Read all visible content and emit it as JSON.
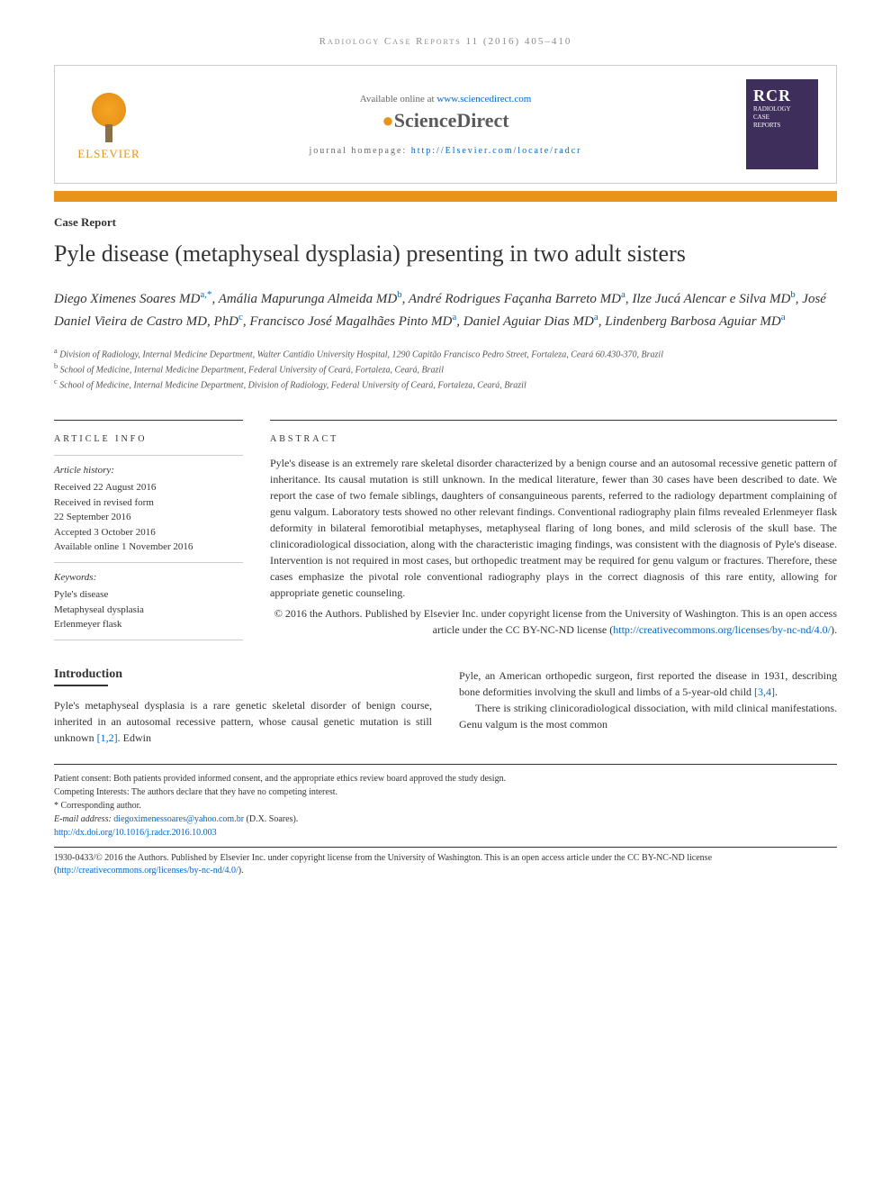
{
  "header": {
    "citation": "Radiology Case Reports 11 (2016) 405–410",
    "available_text": "Available online at ",
    "available_link": "www.sciencedirect.com",
    "sciencedirect": "ScienceDirect",
    "homepage_label": "journal homepage: ",
    "homepage_url": "http://Elsevier.com/locate/radcr",
    "elsevier": "ELSEVIER",
    "journal_abbr": "RCR",
    "journal_name_1": "RADIOLOGY",
    "journal_name_2": "CASE",
    "journal_name_3": "REPORTS"
  },
  "article": {
    "type": "Case Report",
    "title": "Pyle disease (metaphyseal dysplasia) presenting in two adult sisters"
  },
  "authors": [
    {
      "name": "Diego Ximenes Soares MD",
      "aff": "a,*"
    },
    {
      "name": "Amália Mapurunga Almeida MD",
      "aff": "b"
    },
    {
      "name": "André Rodrigues Façanha Barreto MD",
      "aff": "a"
    },
    {
      "name": "Ilze Jucá Alencar e Silva MD",
      "aff": "b"
    },
    {
      "name": "José Daniel Vieira de Castro MD, PhD",
      "aff": "c"
    },
    {
      "name": "Francisco José Magalhães Pinto MD",
      "aff": "a"
    },
    {
      "name": "Daniel Aguiar Dias MD",
      "aff": "a"
    },
    {
      "name": "Lindenberg Barbosa Aguiar MD",
      "aff": "a"
    }
  ],
  "affiliations": [
    {
      "sup": "a",
      "text": "Division of Radiology, Internal Medicine Department, Walter Cantídio University Hospital, 1290 Capitão Francisco Pedro Street, Fortaleza, Ceará 60.430-370, Brazil"
    },
    {
      "sup": "b",
      "text": "School of Medicine, Internal Medicine Department, Federal University of Ceará, Fortaleza, Ceará, Brazil"
    },
    {
      "sup": "c",
      "text": "School of Medicine, Internal Medicine Department, Division of Radiology, Federal University of Ceará, Fortaleza, Ceará, Brazil"
    }
  ],
  "article_info": {
    "header": "ARTICLE INFO",
    "history_label": "Article history:",
    "history": [
      "Received 22 August 2016",
      "Received in revised form",
      "22 September 2016",
      "Accepted 3 October 2016",
      "Available online 1 November 2016"
    ],
    "keywords_label": "Keywords:",
    "keywords": [
      "Pyle's disease",
      "Metaphyseal dysplasia",
      "Erlenmeyer flask"
    ]
  },
  "abstract": {
    "header": "ABSTRACT",
    "text": "Pyle's disease is an extremely rare skeletal disorder characterized by a benign course and an autosomal recessive genetic pattern of inheritance. Its causal mutation is still unknown. In the medical literature, fewer than 30 cases have been described to date. We report the case of two female siblings, daughters of consanguineous parents, referred to the radiology department complaining of genu valgum. Laboratory tests showed no other relevant findings. Conventional radiography plain films revealed Erlenmeyer flask deformity in bilateral femorotibial metaphyses, metaphyseal flaring of long bones, and mild sclerosis of the skull base. The clinicoradiological dissociation, along with the characteristic imaging findings, was consistent with the diagnosis of Pyle's disease. Intervention is not required in most cases, but orthopedic treatment may be required for genu valgum or fractures. Therefore, these cases emphasize the pivotal role conventional radiography plays in the correct diagnosis of this rare entity, allowing for appropriate genetic counseling.",
    "copyright": "© 2016 the Authors. Published by Elsevier Inc. under copyright license from the University of Washington. This is an open access article under the CC BY-NC-ND license (",
    "license_url": "http://creativecommons.org/licenses/by-nc-nd/4.0/",
    "copyright_end": ")."
  },
  "body": {
    "intro_heading": "Introduction",
    "intro_col1": "Pyle's metaphyseal dysplasia is a rare genetic skeletal disorder of benign course, inherited in an autosomal recessive pattern, whose causal genetic mutation is still unknown ",
    "intro_ref1": "[1,2]",
    "intro_col1_end": ". Edwin",
    "intro_col2_p1": "Pyle, an American orthopedic surgeon, first reported the disease in 1931, describing bone deformities involving the skull and limbs of a 5-year-old child ",
    "intro_ref2": "[3,4]",
    "intro_col2_p1_end": ".",
    "intro_col2_p2": "There is striking clinicoradiological dissociation, with mild clinical manifestations. Genu valgum is the most common"
  },
  "footer": {
    "consent": "Patient consent: Both patients provided informed consent, and the appropriate ethics review board approved the study design.",
    "competing": "Competing Interests: The authors declare that they have no competing interest.",
    "corresponding_label": "* Corresponding author.",
    "email_label": "E-mail address: ",
    "email": "diegoximenessoares@yahoo.com.br",
    "email_suffix": " (D.X. Soares).",
    "doi": "http://dx.doi.org/10.1016/j.radcr.2016.10.003",
    "issn_copyright": "1930-0433/© 2016 the Authors. Published by Elsevier Inc. under copyright license from the University of Washington. This is an open access article under the CC BY-NC-ND license (",
    "license_url": "http://creativecommons.org/licenses/by-nc-nd/4.0/",
    "issn_end": ")."
  },
  "colors": {
    "link": "#0066cc",
    "orange": "#e8941a",
    "purple": "#3d2e5c",
    "text": "#333333",
    "border": "#cccccc"
  }
}
